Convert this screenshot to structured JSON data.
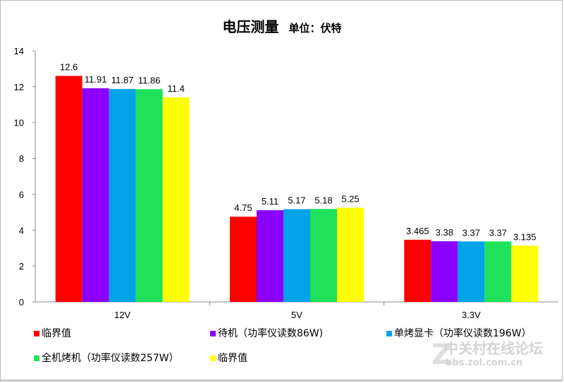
{
  "chart_data": {
    "type": "bar",
    "title": "电压测量",
    "subtitle": "单位：伏特",
    "categories": [
      "12V",
      "5V",
      "3.3V"
    ],
    "series": [
      {
        "name": "临界值",
        "color": "#ff0000",
        "values": [
          12.6,
          4.75,
          3.465
        ]
      },
      {
        "name": "待机（功率仪读数86W)",
        "color": "#8b00ff",
        "values": [
          11.91,
          5.11,
          3.38
        ]
      },
      {
        "name": "单烤显卡（功率仪读数196W）",
        "color": "#00a2e8",
        "values": [
          11.87,
          5.17,
          3.37
        ]
      },
      {
        "name": "全机烤机（功率仪读数257W）",
        "color": "#1ee35a",
        "values": [
          11.86,
          5.18,
          3.37
        ]
      },
      {
        "name": "临界值",
        "color": "#ffff00",
        "values": [
          11.4,
          5.25,
          3.135
        ]
      }
    ],
    "value_labels": [
      [
        "12.6",
        "4.75",
        "3.465"
      ],
      [
        "11.91",
        "5.11",
        "3.38"
      ],
      [
        "11.87",
        "5.17",
        "3.37"
      ],
      [
        "11.86",
        "5.18",
        "3.37"
      ],
      [
        "11.4",
        "5.25",
        "3.135"
      ]
    ],
    "ylim": [
      0,
      14
    ],
    "yticks": [
      0,
      2,
      4,
      6,
      8,
      10,
      12,
      14
    ],
    "grid": false,
    "legend_position": "bottom"
  },
  "watermark": {
    "line1": "中关村在线论坛",
    "line2": "bbs.zol.com.cn"
  }
}
